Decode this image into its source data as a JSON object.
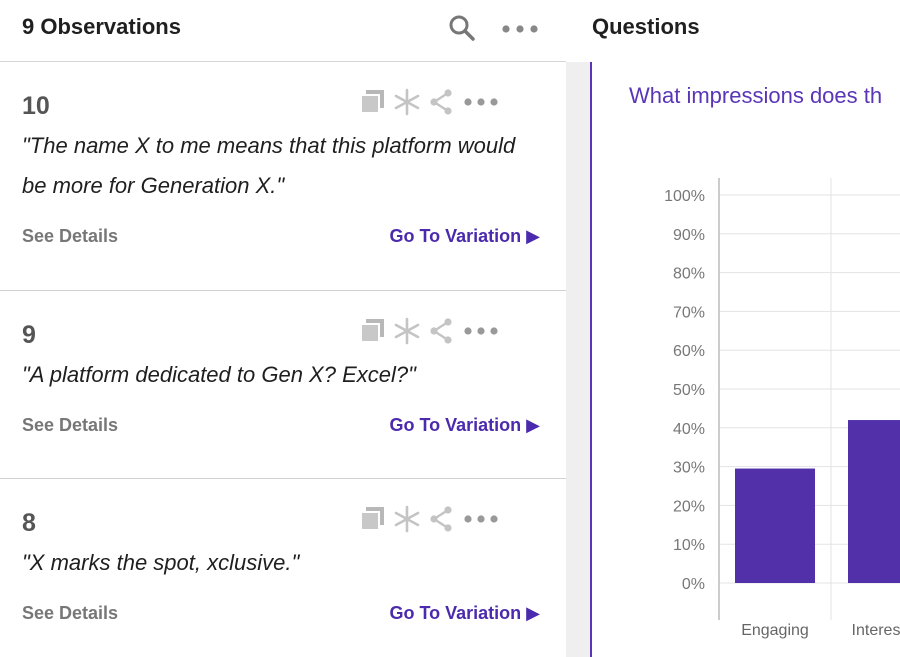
{
  "left_panel": {
    "title": "9 Observations",
    "header_icons": [
      "search-icon",
      "more-icon"
    ]
  },
  "observations": [
    {
      "number": "10",
      "quote": "\"The name X to me means that this platform would be more for Generation X.\"",
      "see_details": "See Details",
      "go_to_variation": "Go To Variation ▶"
    },
    {
      "number": "9",
      "quote": "\"A platform dedicated to Gen X? Excel?\"",
      "see_details": "See Details",
      "go_to_variation": "Go To Variation ▶"
    },
    {
      "number": "8",
      "quote": "\"X marks the spot, xclusive.\"",
      "see_details": "See Details",
      "go_to_variation": "Go To Variation ▶"
    }
  ],
  "right_panel": {
    "title": "Questions",
    "question": "What impressions does th"
  },
  "colors": {
    "accent": "#4b2aad",
    "bar": "#5230aa"
  },
  "chart_data": {
    "type": "bar",
    "categories": [
      "Engaging",
      "Interes"
    ],
    "values": [
      29.5,
      42
    ],
    "ytick_labels": [
      "0%",
      "10%",
      "20%",
      "30%",
      "40%",
      "50%",
      "60%",
      "70%",
      "80%",
      "90%",
      "100%"
    ],
    "ylim": [
      0,
      100
    ],
    "grid": true
  }
}
